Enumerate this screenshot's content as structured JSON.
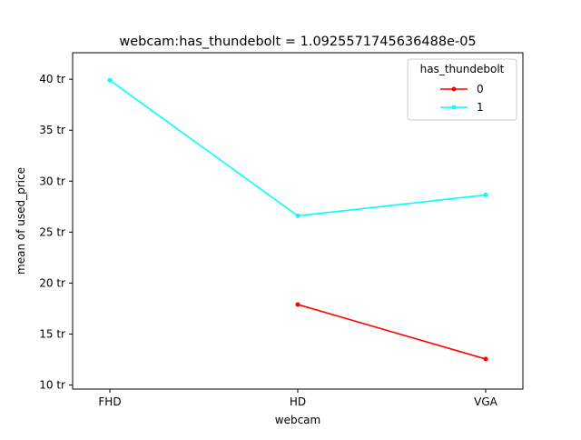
{
  "chart_data": {
    "type": "line",
    "title": "webcam:has_thundebolt = 1.0925571745636488e-05",
    "xlabel": "webcam",
    "ylabel": "mean of used_price",
    "categories": [
      "FHD",
      "HD",
      "VGA"
    ],
    "y_ticks": [
      10,
      15,
      20,
      25,
      30,
      35,
      40
    ],
    "y_tick_suffix": " tr",
    "ylim": [
      9.6,
      42.6
    ],
    "grid": false,
    "legend": {
      "title": "has_thundebolt",
      "placement": "top-right"
    },
    "series": [
      {
        "name": "0",
        "color": "#ff0000",
        "values": [
          null,
          17.9,
          12.55
        ]
      },
      {
        "name": "1",
        "color": "#00ffff",
        "values": [
          39.9,
          26.6,
          28.65
        ]
      }
    ]
  }
}
